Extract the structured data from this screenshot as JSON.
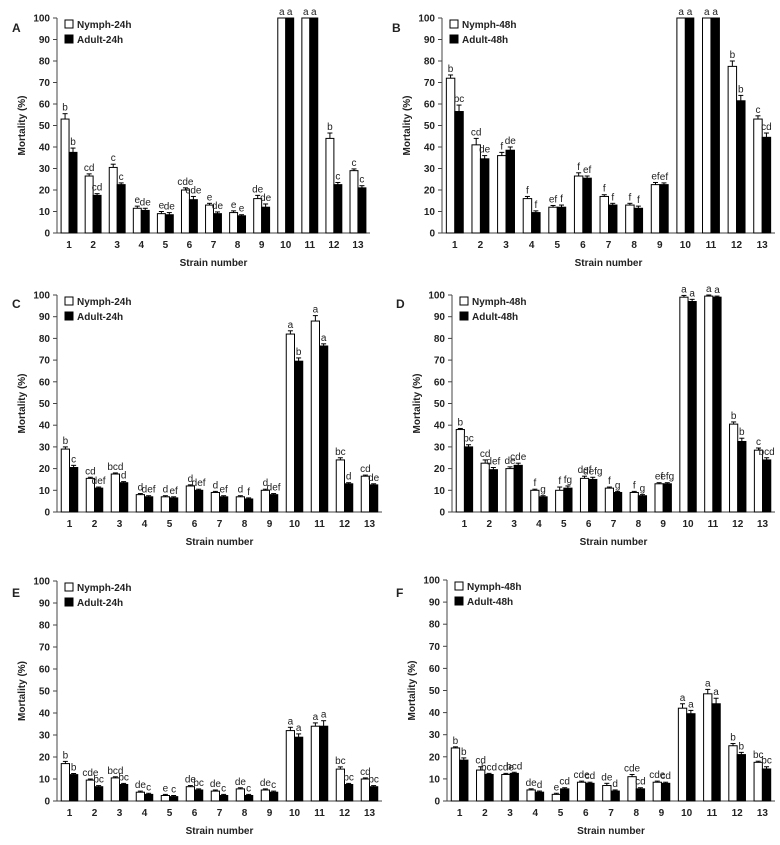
{
  "chart_data": [
    {
      "type": "bar",
      "panel_label": "A",
      "xlabel": "Strain number",
      "ylabel": "Mortality (%)",
      "ylim": [
        0,
        100
      ],
      "yticks": [
        0,
        10,
        20,
        30,
        40,
        50,
        60,
        70,
        80,
        90,
        100
      ],
      "categories": [
        "1",
        "2",
        "3",
        "4",
        "5",
        "6",
        "7",
        "8",
        "9",
        "10",
        "11",
        "12",
        "13"
      ],
      "legend_position": "top-left",
      "series": [
        {
          "name": "Nymph-24h",
          "color": "#ffffff",
          "values": [
            53,
            26.5,
            30.5,
            11.5,
            9,
            20,
            13,
            9.5,
            16,
            100,
            100,
            44,
            29
          ],
          "errors": [
            2.5,
            1,
            1.5,
            1,
            1,
            1,
            0.8,
            0.8,
            1.5,
            0,
            0,
            2.5,
            0.8
          ],
          "letters": [
            "b",
            "cd",
            "c",
            "e",
            "e",
            "cde",
            "e",
            "e",
            "de",
            "a",
            "a",
            "b",
            "c"
          ]
        },
        {
          "name": "Adult-24h",
          "color": "#000000",
          "values": [
            37.5,
            17.5,
            22.5,
            10.5,
            8.5,
            15.5,
            9,
            8,
            12,
            100,
            100,
            22.5,
            21
          ],
          "errors": [
            2,
            0.8,
            0.8,
            1,
            1,
            1.5,
            0.8,
            0.5,
            1.5,
            0,
            0,
            1,
            1
          ],
          "letters": [
            "b",
            "cd",
            "c",
            "de",
            "de",
            "cde",
            "de",
            "e",
            "de",
            "a",
            "a",
            "c",
            "c"
          ]
        }
      ]
    },
    {
      "type": "bar",
      "panel_label": "B",
      "xlabel": "Strain number",
      "ylabel": "Mortality (%)",
      "ylim": [
        0,
        100
      ],
      "yticks": [
        0,
        10,
        20,
        30,
        40,
        50,
        60,
        70,
        80,
        90,
        100
      ],
      "categories": [
        "1",
        "2",
        "3",
        "4",
        "5",
        "6",
        "7",
        "8",
        "9",
        "10",
        "11",
        "12",
        "13"
      ],
      "legend_position": "top-left",
      "series": [
        {
          "name": "Nymph-48h",
          "color": "#ffffff",
          "values": [
            72,
            41,
            36,
            16,
            12,
            26.5,
            17,
            13,
            22.5,
            100,
            100,
            77.5,
            53
          ],
          "errors": [
            1.5,
            3,
            1.5,
            1,
            0.8,
            1.5,
            0.8,
            0.8,
            1,
            0,
            0,
            2.5,
            1.5
          ],
          "letters": [
            "b",
            "cd",
            "f",
            "f",
            "ef",
            "f",
            "f",
            "f",
            "ef",
            "a",
            "a",
            "b",
            "c"
          ]
        },
        {
          "name": "Adult-48h",
          "color": "#000000",
          "values": [
            56.5,
            34.5,
            38.5,
            9.5,
            12,
            25.5,
            13,
            11.5,
            22.5,
            100,
            100,
            61.5,
            44.5
          ],
          "errors": [
            3,
            1.5,
            1.5,
            0.8,
            1,
            1,
            0.8,
            1,
            0.8,
            0,
            0,
            2.5,
            2
          ],
          "letters": [
            "bc",
            "de",
            "de",
            "f",
            "f",
            "ef",
            "f",
            "f",
            "ef",
            "a",
            "a",
            "b",
            "cd"
          ]
        }
      ]
    },
    {
      "type": "bar",
      "panel_label": "C",
      "xlabel": "Strain number",
      "ylabel": "Mortality (%)",
      "ylim": [
        0,
        100
      ],
      "yticks": [
        0,
        10,
        20,
        30,
        40,
        50,
        60,
        70,
        80,
        90,
        100
      ],
      "categories": [
        "1",
        "2",
        "3",
        "4",
        "5",
        "6",
        "7",
        "8",
        "9",
        "10",
        "11",
        "12",
        "13"
      ],
      "legend_position": "top-left",
      "series": [
        {
          "name": "Nymph-24h",
          "color": "#ffffff",
          "values": [
            29,
            15.5,
            17.5,
            8,
            7,
            12,
            9,
            7,
            10,
            82,
            88,
            24,
            16.5
          ],
          "errors": [
            1,
            0.5,
            0.5,
            0.5,
            0.5,
            0.5,
            0.5,
            0.5,
            0.5,
            1.5,
            2.5,
            1,
            0.5
          ],
          "letters": [
            "b",
            "cd",
            "bcd",
            "d",
            "d",
            "d",
            "d",
            "d",
            "d",
            "a",
            "a",
            "bc",
            "cd"
          ]
        },
        {
          "name": "Adult-24h",
          "color": "#000000",
          "values": [
            20.5,
            11,
            13.5,
            7,
            6.5,
            10,
            7,
            6,
            8,
            69.5,
            76.5,
            13,
            12.5
          ],
          "errors": [
            1,
            0.5,
            0.5,
            0.5,
            0.5,
            0.5,
            0.5,
            0.5,
            0.5,
            1.5,
            1,
            0.5,
            0.5
          ],
          "letters": [
            "c",
            "def",
            "d",
            "def",
            "ef",
            "def",
            "ef",
            "f",
            "def",
            "b",
            "a",
            "d",
            "de"
          ]
        }
      ]
    },
    {
      "type": "bar",
      "panel_label": "D",
      "xlabel": "Strain number",
      "ylabel": "Mortality (%)",
      "ylim": [
        0,
        100
      ],
      "yticks": [
        0,
        10,
        20,
        30,
        40,
        50,
        60,
        70,
        80,
        90,
        100
      ],
      "categories": [
        "1",
        "2",
        "3",
        "4",
        "5",
        "6",
        "7",
        "8",
        "9",
        "10",
        "11",
        "12",
        "13"
      ],
      "legend_position": "top-left",
      "series": [
        {
          "name": "Nymph-48h",
          "color": "#ffffff",
          "values": [
            38,
            22.5,
            20,
            10,
            10,
            15.5,
            11,
            9,
            13,
            99,
            99.5,
            40.5,
            28.5
          ],
          "errors": [
            0.5,
            1.5,
            0.8,
            0.5,
            1.5,
            1,
            0.5,
            0.5,
            0.5,
            0.8,
            0.5,
            1,
            1
          ],
          "letters": [
            "b",
            "cd",
            "de",
            "f",
            "f",
            "def",
            "f",
            "f",
            "ef",
            "a",
            "a",
            "b",
            "c"
          ]
        },
        {
          "name": "Adult-48h",
          "color": "#000000",
          "values": [
            30,
            19.5,
            21.5,
            7,
            11,
            15,
            9,
            7.5,
            13,
            97,
            99,
            32.5,
            24
          ],
          "errors": [
            1,
            1,
            1,
            0.5,
            1,
            1,
            0.5,
            0.5,
            0.5,
            1,
            0.5,
            1.5,
            1
          ],
          "letters": [
            "bc",
            "def",
            "cde",
            "g",
            "fg",
            "defg",
            "g",
            "g",
            "efg",
            "a",
            "a",
            "b",
            "bcd"
          ]
        }
      ]
    },
    {
      "type": "bar",
      "panel_label": "E",
      "xlabel": "Strain number",
      "ylabel": "Mortality (%)",
      "ylim": [
        0,
        100
      ],
      "yticks": [
        0,
        10,
        20,
        30,
        40,
        50,
        60,
        70,
        80,
        90,
        100
      ],
      "categories": [
        "1",
        "2",
        "3",
        "4",
        "5",
        "6",
        "7",
        "8",
        "9",
        "10",
        "11",
        "12",
        "13"
      ],
      "legend_position": "top-left",
      "series": [
        {
          "name": "Nymph-24h",
          "color": "#ffffff",
          "values": [
            17,
            9.5,
            10.5,
            4,
            2.5,
            6.5,
            4.5,
            5.5,
            5,
            32,
            34,
            14.5,
            10
          ],
          "errors": [
            1,
            0.5,
            0.5,
            0.5,
            0.5,
            0.5,
            0.5,
            0.5,
            0.5,
            1.5,
            1.5,
            1,
            0.5
          ],
          "letters": [
            "b",
            "cde",
            "bcd",
            "de",
            "e",
            "de",
            "de",
            "de",
            "de",
            "a",
            "a",
            "bc",
            "cd"
          ]
        },
        {
          "name": "Adult-24h",
          "color": "#000000",
          "values": [
            12,
            6.5,
            7.5,
            3,
            2,
            5,
            2.5,
            2.5,
            4,
            29,
            34,
            7.5,
            6.5
          ],
          "errors": [
            0.5,
            0.5,
            0.5,
            0.5,
            0.5,
            0.5,
            0.5,
            0.5,
            0.5,
            1.5,
            2.5,
            0.5,
            0.5
          ],
          "letters": [
            "b",
            "bc",
            "bc",
            "c",
            "c",
            "bc",
            "c",
            "c",
            "c",
            "a",
            "a",
            "bc",
            "bc"
          ]
        }
      ]
    },
    {
      "type": "bar",
      "panel_label": "F",
      "xlabel": "Strain number",
      "ylabel": "Mortality (%)",
      "ylim": [
        0,
        100
      ],
      "yticks": [
        0,
        10,
        20,
        30,
        40,
        50,
        60,
        70,
        80,
        90,
        100
      ],
      "categories": [
        "1",
        "2",
        "3",
        "4",
        "5",
        "6",
        "7",
        "8",
        "9",
        "10",
        "11",
        "12",
        "13"
      ],
      "legend_position": "top-left",
      "series": [
        {
          "name": "Nymph-48h",
          "color": "#ffffff",
          "values": [
            24,
            14,
            12,
            5,
            3,
            8.5,
            7,
            11,
            8.5,
            42,
            48.5,
            25,
            17.5
          ],
          "errors": [
            0.5,
            1.5,
            0.5,
            0.5,
            0.5,
            0.5,
            1,
            1,
            0.5,
            2,
            2,
            1,
            0.5
          ],
          "letters": [
            "b",
            "cd",
            "cde",
            "de",
            "e",
            "cde",
            "de",
            "cde",
            "cde",
            "a",
            "a",
            "b",
            "bc"
          ]
        },
        {
          "name": "Adult-48h",
          "color": "#000000",
          "values": [
            18.5,
            12,
            12.5,
            4,
            5.5,
            8,
            4.5,
            5.5,
            8,
            39.5,
            44,
            21,
            14.5
          ],
          "errors": [
            1,
            0.5,
            0.5,
            0.5,
            0.5,
            0.5,
            0.5,
            0.5,
            0.5,
            1.5,
            2.5,
            1,
            1
          ],
          "letters": [
            "b",
            "bcd",
            "bcd",
            "d",
            "cd",
            "cd",
            "d",
            "cd",
            "cd",
            "a",
            "a",
            "b",
            "bc"
          ]
        }
      ]
    }
  ]
}
